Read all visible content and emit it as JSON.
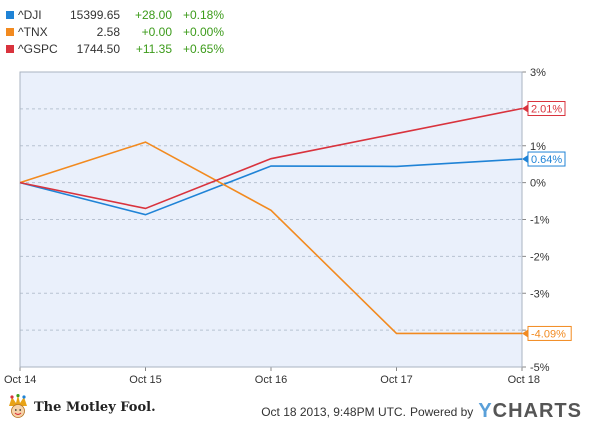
{
  "legend": [
    {
      "ticker": "^DJI",
      "price": "15399.65",
      "change": "+28.00",
      "pct": "+0.18%",
      "color": "#1f83d6"
    },
    {
      "ticker": "^TNX",
      "price": "2.58",
      "change": "+0.00",
      "pct": "+0.00%",
      "color": "#f28a1f"
    },
    {
      "ticker": "^GSPC",
      "price": "1744.50",
      "change": "+11.35",
      "pct": "+0.65%",
      "color": "#d9333d"
    }
  ],
  "chart_data": {
    "type": "line",
    "categories": [
      "Oct 14",
      "Oct 15",
      "Oct 16",
      "Oct 17",
      "Oct 18"
    ],
    "yticks": [
      "3%",
      "2%",
      "1%",
      "0%",
      "-1%",
      "-2%",
      "-3%",
      "-4%",
      "-5%"
    ],
    "ylim": [
      -5,
      3
    ],
    "series": [
      {
        "name": "^DJI",
        "color": "#1f83d6",
        "values": [
          0,
          -0.87,
          0.45,
          0.44,
          0.64
        ],
        "end_label": "0.64%"
      },
      {
        "name": "^TNX",
        "color": "#f28a1f",
        "values": [
          0,
          1.1,
          -0.75,
          -4.09,
          -4.09
        ],
        "end_label": "-4.09%"
      },
      {
        "name": "^GSPC",
        "color": "#d9333d",
        "values": [
          0,
          -0.7,
          0.65,
          1.33,
          2.01
        ],
        "end_label": "2.01%"
      }
    ],
    "grid": "horizontal-dashed",
    "background": "#eaf0fb"
  },
  "footer": {
    "logo_text": "The Motley Fool.",
    "date": "Oct 18 2013, 9:48PM UTC.",
    "powered": "Powered by",
    "brand_y": "Y",
    "brand_rest": "CHARTS"
  }
}
